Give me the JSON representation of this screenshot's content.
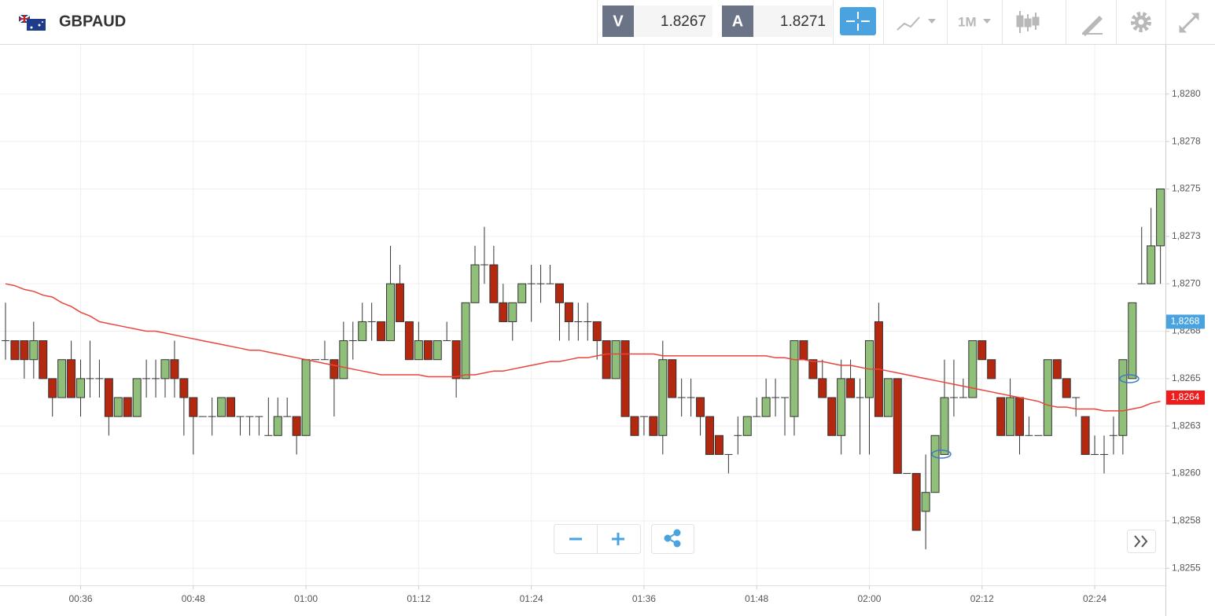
{
  "header": {
    "symbol": "GBPAUD",
    "sell_label": "V",
    "sell_price": "1.8267",
    "buy_label": "A",
    "buy_price": "1.8271",
    "timeframe": "1M"
  },
  "chart_data": {
    "type": "candlestick",
    "categories": [
      null,
      null,
      null,
      null,
      null,
      null,
      null,
      null,
      "00:36",
      null,
      null,
      null,
      null,
      null,
      null,
      null,
      null,
      null,
      null,
      null,
      "00:48",
      null,
      null,
      null,
      null,
      null,
      null,
      null,
      null,
      null,
      null,
      null,
      "01:00",
      null,
      null,
      null,
      null,
      null,
      null,
      null,
      null,
      null,
      null,
      null,
      "01:12",
      null,
      null,
      null,
      null,
      null,
      null,
      null,
      null,
      null,
      null,
      null,
      "01:24",
      null,
      null,
      null,
      null,
      null,
      null,
      null,
      null,
      null,
      null,
      null,
      "01:36",
      null,
      null,
      null,
      null,
      null,
      null,
      null,
      null,
      null,
      null,
      null,
      "01:48",
      null,
      null,
      null,
      null,
      null,
      null,
      null,
      null,
      null,
      null,
      null,
      "02:00",
      null,
      null,
      null,
      null,
      null,
      null,
      null,
      null,
      null,
      null,
      null,
      "02:12",
      null,
      null,
      null,
      null,
      null,
      null,
      null,
      null,
      null,
      null,
      null,
      "02:24",
      null,
      null,
      null,
      null,
      null,
      null,
      null
    ],
    "open": [
      1.8267,
      1.8267,
      1.8267,
      1.8266,
      1.8267,
      1.8265,
      1.8264,
      1.8266,
      1.8264,
      1.8265,
      1.8265,
      1.8265,
      1.8263,
      1.8264,
      1.8263,
      1.8265,
      1.8265,
      1.8265,
      1.8266,
      1.8265,
      1.8264,
      1.8263,
      1.8263,
      1.8263,
      1.8264,
      1.8263,
      1.8263,
      1.8263,
      1.8262,
      1.8262,
      1.8263,
      1.8263,
      1.8262,
      1.8266,
      1.8266,
      1.8266,
      1.8265,
      1.8267,
      1.8267,
      1.8268,
      1.8268,
      1.8267,
      1.827,
      1.8268,
      1.8266,
      1.8267,
      1.8266,
      1.8267,
      1.8267,
      1.8265,
      1.8269,
      1.8271,
      1.8271,
      1.8269,
      1.8268,
      1.8269,
      1.827,
      1.827,
      1.827,
      1.827,
      1.8269,
      1.8268,
      1.8268,
      1.8268,
      1.8267,
      1.8265,
      1.8267,
      1.8263,
      1.8263,
      1.8263,
      1.8262,
      1.8266,
      1.8264,
      1.8264,
      1.8264,
      1.8263,
      1.8262,
      1.8261,
      1.8262,
      1.8262,
      1.8263,
      1.8263,
      1.8264,
      1.8264,
      1.8263,
      1.8267,
      1.8266,
      1.8265,
      1.8264,
      1.8262,
      1.8265,
      1.8264,
      1.8264,
      1.8268,
      1.8263,
      1.8265,
      1.826,
      1.826,
      1.8258,
      1.8259,
      1.8261,
      1.8264,
      1.8264,
      1.8264,
      1.8267,
      1.8266,
      1.8264,
      1.8262,
      1.8264,
      1.8262,
      1.8262,
      1.8262,
      1.8266,
      1.8265,
      1.8264,
      1.8263,
      1.8261,
      1.8261,
      1.8262,
      1.8262,
      1.8265,
      1.827,
      1.827,
      1.8272
    ],
    "high": [
      1.8269,
      1.8267,
      1.8267,
      1.8268,
      1.8267,
      1.8265,
      1.8266,
      1.8267,
      1.8266,
      1.8267,
      1.8266,
      1.8265,
      1.8264,
      1.8264,
      1.8265,
      1.8266,
      1.8266,
      1.8266,
      1.8267,
      1.8265,
      1.8264,
      1.8263,
      1.8264,
      1.8264,
      1.8264,
      1.8263,
      1.8263,
      1.8263,
      1.8264,
      1.8264,
      1.8264,
      1.8263,
      1.8266,
      1.8266,
      1.8267,
      1.8266,
      1.8268,
      1.8268,
      1.8269,
      1.8269,
      1.8268,
      1.8272,
      1.8271,
      1.8268,
      1.8268,
      1.8267,
      1.8267,
      1.8268,
      1.8267,
      1.8269,
      1.8272,
      1.8273,
      1.8272,
      1.827,
      1.8269,
      1.827,
      1.8271,
      1.8271,
      1.8271,
      1.827,
      1.8269,
      1.8269,
      1.8269,
      1.8268,
      1.8267,
      1.8267,
      1.8267,
      1.8263,
      1.8263,
      1.8263,
      1.8267,
      1.8266,
      1.8265,
      1.8265,
      1.8264,
      1.8263,
      1.8262,
      1.8261,
      1.8263,
      1.8263,
      1.8264,
      1.8265,
      1.8265,
      1.8264,
      1.8267,
      1.8267,
      1.8266,
      1.8266,
      1.8264,
      1.8266,
      1.8266,
      1.8265,
      1.8267,
      1.8269,
      1.8265,
      1.8265,
      1.826,
      1.826,
      1.8261,
      1.8262,
      1.8266,
      1.8266,
      1.8265,
      1.8267,
      1.8267,
      1.8266,
      1.8264,
      1.8265,
      1.8264,
      1.8263,
      1.8262,
      1.8266,
      1.8266,
      1.8265,
      1.8264,
      1.8263,
      1.8262,
      1.8262,
      1.8263,
      1.8266,
      1.8269,
      1.8273,
      1.8274,
      1.8275
    ],
    "low": [
      1.8266,
      1.8266,
      1.8265,
      1.8265,
      1.8265,
      1.8263,
      1.8264,
      1.8264,
      1.8263,
      1.8264,
      1.8264,
      1.8262,
      1.8263,
      1.8263,
      1.8263,
      1.8264,
      1.8264,
      1.8264,
      1.8264,
      1.8262,
      1.8261,
      1.8263,
      1.8262,
      1.8263,
      1.8263,
      1.8262,
      1.8262,
      1.8262,
      1.8262,
      1.8262,
      1.8263,
      1.8261,
      1.8262,
      1.8266,
      1.8266,
      1.8263,
      1.8265,
      1.8266,
      1.8267,
      1.8267,
      1.8267,
      1.8267,
      1.8268,
      1.8266,
      1.8266,
      1.8266,
      1.8266,
      1.8267,
      1.8264,
      1.8265,
      1.8269,
      1.827,
      1.8269,
      1.8268,
      1.8267,
      1.8269,
      1.8268,
      1.8269,
      1.827,
      1.8267,
      1.8267,
      1.8267,
      1.8267,
      1.8266,
      1.8265,
      1.8265,
      1.8263,
      1.8262,
      1.8262,
      1.8262,
      1.8261,
      1.8264,
      1.8263,
      1.8263,
      1.8262,
      1.8261,
      1.8261,
      1.826,
      1.8261,
      1.8262,
      1.8263,
      1.8263,
      1.8263,
      1.8262,
      1.8262,
      1.8266,
      1.8265,
      1.8264,
      1.8262,
      1.8261,
      1.8264,
      1.8261,
      1.8261,
      1.8263,
      1.8263,
      1.826,
      1.826,
      1.8257,
      1.8256,
      1.8259,
      1.8261,
      1.8263,
      1.8264,
      1.8264,
      1.8266,
      1.8265,
      1.8262,
      1.8262,
      1.8261,
      1.8262,
      1.8262,
      1.8262,
      1.8265,
      1.8264,
      1.8263,
      1.8261,
      1.8261,
      1.826,
      1.8261,
      1.8261,
      1.8265,
      1.827,
      1.827,
      1.827
    ],
    "close": [
      1.8267,
      1.8266,
      1.8266,
      1.8267,
      1.8265,
      1.8264,
      1.8266,
      1.8264,
      1.8265,
      1.8265,
      1.8265,
      1.8263,
      1.8264,
      1.8263,
      1.8265,
      1.8265,
      1.8265,
      1.8266,
      1.8265,
      1.8264,
      1.8263,
      1.8263,
      1.8263,
      1.8264,
      1.8263,
      1.8263,
      1.8263,
      1.8263,
      1.8262,
      1.8263,
      1.8263,
      1.8262,
      1.8266,
      1.8266,
      1.8266,
      1.8265,
      1.8267,
      1.8267,
      1.8268,
      1.8268,
      1.8267,
      1.827,
      1.8268,
      1.8266,
      1.8267,
      1.8266,
      1.8267,
      1.8267,
      1.8265,
      1.8269,
      1.8271,
      1.8271,
      1.8269,
      1.8268,
      1.8269,
      1.827,
      1.827,
      1.827,
      1.827,
      1.8269,
      1.8268,
      1.8268,
      1.8268,
      1.8267,
      1.8265,
      1.8267,
      1.8263,
      1.8262,
      1.8263,
      1.8262,
      1.8266,
      1.8264,
      1.8264,
      1.8264,
      1.8263,
      1.8261,
      1.8261,
      1.8261,
      1.8262,
      1.8263,
      1.8263,
      1.8264,
      1.8264,
      1.8264,
      1.8267,
      1.8266,
      1.8265,
      1.8264,
      1.8262,
      1.8265,
      1.8264,
      1.8264,
      1.8267,
      1.8263,
      1.8265,
      1.826,
      1.826,
      1.8257,
      1.8259,
      1.8262,
      1.8264,
      1.8264,
      1.8264,
      1.8267,
      1.8266,
      1.8265,
      1.8262,
      1.8264,
      1.8262,
      1.8262,
      1.8262,
      1.8266,
      1.8265,
      1.8264,
      1.8264,
      1.8261,
      1.8261,
      1.8261,
      1.8262,
      1.8266,
      1.8269,
      1.827,
      1.8272,
      1.8275
    ],
    "ma": {
      "color": "#e8453c",
      "values": [
        1.827,
        1.82699,
        1.82697,
        1.82696,
        1.82694,
        1.82693,
        1.8269,
        1.82688,
        1.82685,
        1.82683,
        1.8268,
        1.82679,
        1.82678,
        1.82677,
        1.82676,
        1.82675,
        1.82675,
        1.82674,
        1.82673,
        1.82672,
        1.82671,
        1.8267,
        1.82669,
        1.82668,
        1.82667,
        1.82666,
        1.82665,
        1.82665,
        1.82664,
        1.82663,
        1.82662,
        1.82661,
        1.8266,
        1.82659,
        1.82658,
        1.82657,
        1.82656,
        1.82655,
        1.82654,
        1.82653,
        1.82652,
        1.82652,
        1.82652,
        1.82652,
        1.82652,
        1.82651,
        1.82651,
        1.82651,
        1.82651,
        1.82652,
        1.82652,
        1.82653,
        1.82654,
        1.82654,
        1.82655,
        1.82656,
        1.82657,
        1.82658,
        1.82659,
        1.82659,
        1.8266,
        1.82661,
        1.82661,
        1.82662,
        1.82663,
        1.82663,
        1.82663,
        1.82663,
        1.82663,
        1.82663,
        1.82662,
        1.82662,
        1.82662,
        1.82662,
        1.82662,
        1.82662,
        1.82662,
        1.82662,
        1.82662,
        1.82662,
        1.82662,
        1.82662,
        1.82661,
        1.82661,
        1.8266,
        1.8266,
        1.82659,
        1.82659,
        1.82658,
        1.82657,
        1.82657,
        1.82656,
        1.82655,
        1.82655,
        1.82654,
        1.82653,
        1.82652,
        1.82651,
        1.8265,
        1.82649,
        1.82648,
        1.82647,
        1.82646,
        1.82645,
        1.82644,
        1.82643,
        1.82642,
        1.82641,
        1.8264,
        1.82639,
        1.82638,
        1.82636,
        1.82635,
        1.82635,
        1.82634,
        1.82634,
        1.82634,
        1.82633,
        1.82633,
        1.82633,
        1.82634,
        1.82635,
        1.82637,
        1.82638
      ]
    },
    "up_color": "#8fbf78",
    "down_color": "#b3280f",
    "markers": [
      {
        "value": 1.8268,
        "label": "1,8268",
        "color": "#4aa3df"
      },
      {
        "value": 1.8264,
        "label": "1,8264",
        "color": "#ee1c1c"
      }
    ],
    "ylim": [
      1.82541,
      1.82826
    ],
    "yticks": [
      {
        "value": 1.8255,
        "label": "1,8255"
      },
      {
        "value": 1.82575,
        "label": "1,8258"
      },
      {
        "value": 1.826,
        "label": "1,8260"
      },
      {
        "value": 1.82625,
        "label": "1,8263"
      },
      {
        "value": 1.8265,
        "label": "1,8265"
      },
      {
        "value": 1.82675,
        "label": "1,8268"
      },
      {
        "value": 1.827,
        "label": "1,8270"
      },
      {
        "value": 1.82725,
        "label": "1,8273"
      },
      {
        "value": 1.8275,
        "label": "1,8275"
      },
      {
        "value": 1.82775,
        "label": "1,8278"
      },
      {
        "value": 1.828,
        "label": "1,8280"
      }
    ],
    "grid": true
  }
}
